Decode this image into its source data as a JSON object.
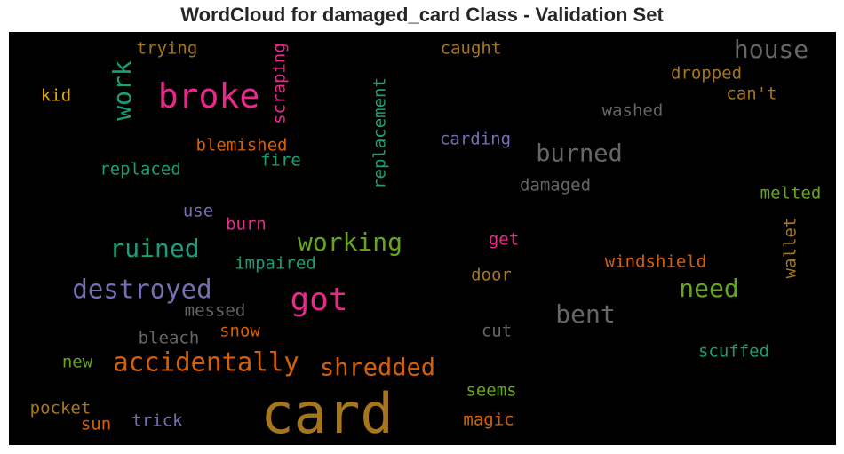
{
  "chart_data": {
    "type": "wordcloud",
    "title": "WordCloud for damaged_card Class - Validation Set",
    "words": [
      {
        "text": "card",
        "color": "#a6761d",
        "weight": 100
      },
      {
        "text": "broke",
        "color": "#e7298a",
        "weight": 58
      },
      {
        "text": "got",
        "color": "#e7298a",
        "weight": 56
      },
      {
        "text": "destroyed",
        "color": "#7570b3",
        "weight": 46
      },
      {
        "text": "accidentally",
        "color": "#d95f02",
        "weight": 46
      },
      {
        "text": "house",
        "color": "#666666",
        "weight": 45
      },
      {
        "text": "bent",
        "color": "#666666",
        "weight": 45
      },
      {
        "text": "need",
        "color": "#66a61e",
        "weight": 45
      },
      {
        "text": "work",
        "color": "#1b9e77",
        "weight": 44
      },
      {
        "text": "working",
        "color": "#66a61e",
        "weight": 44
      },
      {
        "text": "ruined",
        "color": "#1b9e77",
        "weight": 44
      },
      {
        "text": "shredded",
        "color": "#d95f02",
        "weight": 43
      },
      {
        "text": "burned",
        "color": "#666666",
        "weight": 42
      },
      {
        "text": "replacement",
        "color": "#1b9e77",
        "weight": 30
      },
      {
        "text": "scraping",
        "color": "#e7298a",
        "weight": 30
      },
      {
        "text": "blemished",
        "color": "#d95f02",
        "weight": 30
      },
      {
        "text": "trying",
        "color": "#a6761d",
        "weight": 30
      },
      {
        "text": "caught",
        "color": "#a6761d",
        "weight": 30
      },
      {
        "text": "dropped",
        "color": "#a6761d",
        "weight": 30
      },
      {
        "text": "kid",
        "color": "#e6ab02",
        "weight": 30
      },
      {
        "text": "can't",
        "color": "#a6761d",
        "weight": 30
      },
      {
        "text": "washed",
        "color": "#666666",
        "weight": 30
      },
      {
        "text": "carding",
        "color": "#7570b3",
        "weight": 30
      },
      {
        "text": "replaced",
        "color": "#1b9e77",
        "weight": 30
      },
      {
        "text": "fire",
        "color": "#1b9e77",
        "weight": 30
      },
      {
        "text": "damaged",
        "color": "#666666",
        "weight": 30
      },
      {
        "text": "melted",
        "color": "#66a61e",
        "weight": 30
      },
      {
        "text": "use",
        "color": "#7570b3",
        "weight": 30
      },
      {
        "text": "burn",
        "color": "#e7298a",
        "weight": 30
      },
      {
        "text": "get",
        "color": "#e7298a",
        "weight": 30
      },
      {
        "text": "wallet",
        "color": "#a6761d",
        "weight": 30
      },
      {
        "text": "impaired",
        "color": "#1b9e77",
        "weight": 30
      },
      {
        "text": "windshield",
        "color": "#d95f02",
        "weight": 30
      },
      {
        "text": "door",
        "color": "#a6761d",
        "weight": 30
      },
      {
        "text": "messed",
        "color": "#666666",
        "weight": 30
      },
      {
        "text": "snow",
        "color": "#d95f02",
        "weight": 30
      },
      {
        "text": "bleach",
        "color": "#666666",
        "weight": 30
      },
      {
        "text": "cut",
        "color": "#666666",
        "weight": 30
      },
      {
        "text": "scuffed",
        "color": "#1b9e77",
        "weight": 30
      },
      {
        "text": "new",
        "color": "#66a61e",
        "weight": 30
      },
      {
        "text": "seems",
        "color": "#66a61e",
        "weight": 30
      },
      {
        "text": "pocket",
        "color": "#a6761d",
        "weight": 30
      },
      {
        "text": "magic",
        "color": "#d95f02",
        "weight": 30
      },
      {
        "text": "trick",
        "color": "#7570b3",
        "weight": 30
      },
      {
        "text": "sun",
        "color": "#d95f02",
        "weight": 30
      }
    ]
  }
}
